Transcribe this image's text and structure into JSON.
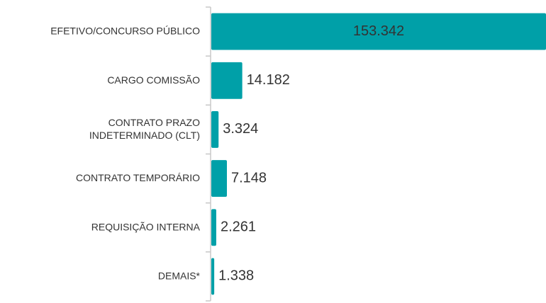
{
  "chart_data": {
    "type": "bar",
    "orientation": "horizontal",
    "color": "#00a0a8",
    "categories": [
      "EFETIVO/CONCURSO PÚBLICO",
      "CARGO COMISSÃO",
      "CONTRATO PRAZO\nINDETERMINADO (CLT)",
      "CONTRATO TEMPORÁRIO",
      "REQUISIÇÃO INTERNA",
      "DEMAIS*"
    ],
    "values": [
      153342,
      14182,
      3324,
      7148,
      2261,
      1338
    ],
    "value_labels": [
      "153.342",
      "14.182",
      "3.324",
      "7.148",
      "2.261",
      "1.338"
    ]
  }
}
